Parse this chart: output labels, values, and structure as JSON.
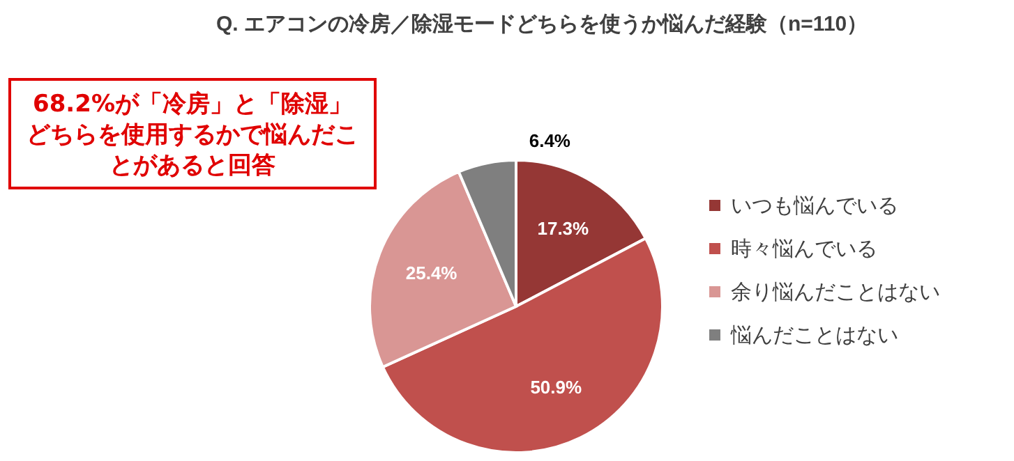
{
  "chart_data": {
    "type": "pie",
    "title": "Q. エアコンの冷房／除湿モードどちらを使うか悩んだ経験（n=110）",
    "categories": [
      "いつも悩んでいる",
      "時々悩んでいる",
      "余り悩んだことはない",
      "悩んだことはない"
    ],
    "values": [
      17.3,
      50.9,
      25.4,
      6.4
    ],
    "colors": [
      "#953735",
      "#c0504d",
      "#d99694",
      "#7f7f7f"
    ],
    "value_labels": [
      "17.3%",
      "50.9%",
      "25.4%",
      "6.4%"
    ],
    "legend": "right",
    "annotations": [
      "68.2%が「冷房」と「除湿」どちらを使用するかで悩んだことがあると回答"
    ]
  }
}
